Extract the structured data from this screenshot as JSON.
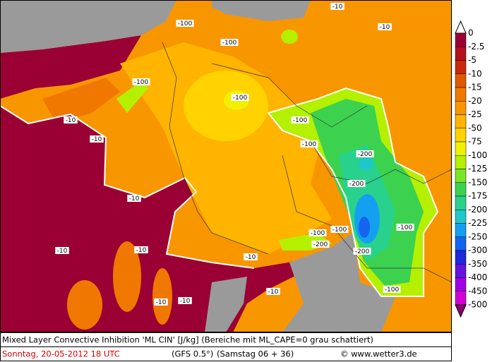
{
  "map": {
    "legend": {
      "labels": [
        "0",
        "-2.5",
        "-5",
        "-10",
        "-15",
        "-20",
        "-25",
        "-50",
        "-75",
        "-100",
        "-125",
        "-150",
        "-175",
        "-200",
        "-225",
        "-250",
        "-300",
        "-350",
        "-400",
        "-450",
        "-500"
      ],
      "colors": [
        "#9b0034",
        "#b4101e",
        "#c82a0a",
        "#e05a00",
        "#f07800",
        "#f89600",
        "#ffb400",
        "#ffd200",
        "#f0f000",
        "#b4f000",
        "#78e628",
        "#3cd250",
        "#28d28c",
        "#1ec8c8",
        "#14a0f0",
        "#1464f0",
        "#1e28dc",
        "#6414dc",
        "#a000e6",
        "#d200d2"
      ],
      "top_color": "#ffffff",
      "bottom_color": "#8c006e"
    },
    "contour_labels": [
      "-100",
      "-10",
      "-10",
      "-100",
      "-100",
      "-10",
      "-100",
      "-10",
      "-100",
      "-100",
      "-200",
      "-10",
      "-200",
      "-100",
      "-100",
      "-200",
      "-100",
      "-200",
      "-10",
      "-10",
      "-10",
      "-10",
      "-10",
      "-10",
      "-100"
    ],
    "footer": {
      "title": "Mixed Layer Convective Inhibition 'ML CIN' [J/kg] (Bereiche mit ML_CAPE=0 grau schattiert)",
      "date": "Sonntag, 20-05-2012  18 UTC",
      "model": "(GFS 0.5°)",
      "run": "(Samstag 06 + 36)",
      "credit": "© www.wetter3.de"
    }
  }
}
